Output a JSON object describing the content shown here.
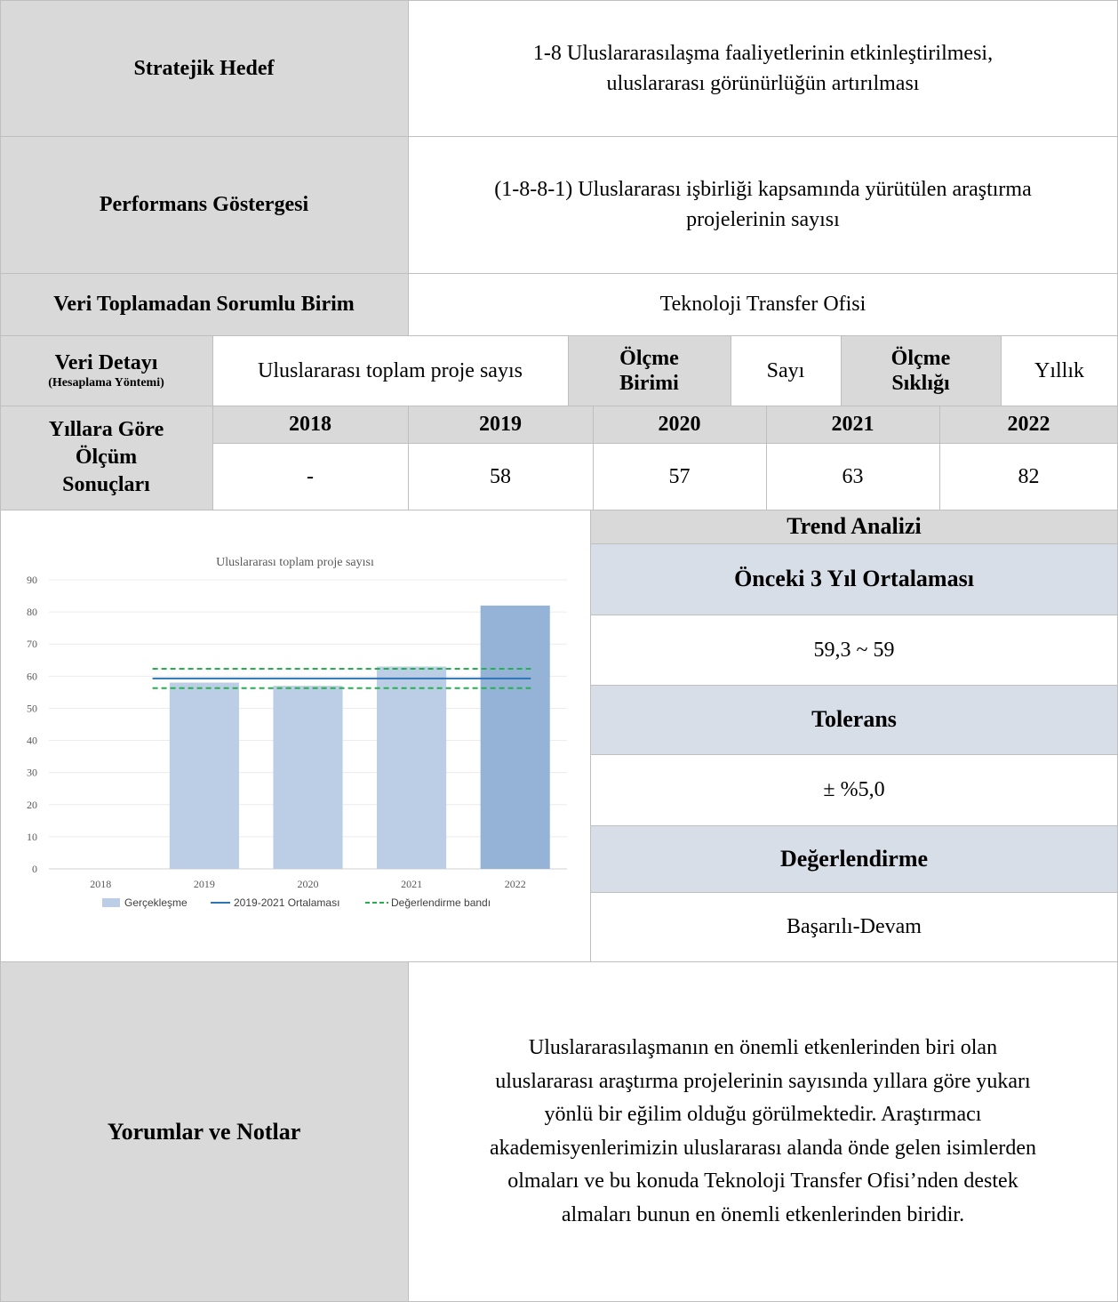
{
  "strategic_goal": {
    "label": "Stratejik Hedef",
    "value_line1": "1-8 Uluslararasılaşma faaliyetlerinin etkinleştirilmesi,",
    "value_line2": "uluslararası görünürlüğün artırılması"
  },
  "performance_indicator": {
    "label": "Performans Göstergesi",
    "value_line1": "(1-8-8-1) Uluslararası işbirliği kapsamında yürütülen araştırma",
    "value_line2": "projelerinin sayısı"
  },
  "responsible_unit": {
    "label": "Veri Toplamadan Sorumlu Birim",
    "value": "Teknoloji Transfer Ofisi"
  },
  "data_detail": {
    "label": "Veri Detayı",
    "sublabel": "(Hesaplama Yöntemi)",
    "value": "Uluslararası toplam proje sayıs",
    "unit_label_line1": "Ölçme",
    "unit_label_line2": "Birimi",
    "unit_value": "Sayı",
    "freq_label_line1": "Ölçme",
    "freq_label_line2": "Sıklığı",
    "freq_value": "Yıllık"
  },
  "yearly": {
    "label_line1": "Yıllara Göre",
    "label_line2": "Ölçüm",
    "label_line3": "Sonuçları",
    "years": [
      "2018",
      "2019",
      "2020",
      "2021",
      "2022"
    ],
    "values": [
      "-",
      "58",
      "57",
      "63",
      "82"
    ]
  },
  "trend": {
    "title": "Trend Analizi",
    "avg_label": "Önceki 3 Yıl Ortalaması",
    "avg_value": "59,3 ~ 59",
    "tolerance_label": "Tolerans",
    "tolerance_value": "± %5,0",
    "evaluation_label": "Değerlendirme",
    "evaluation_value": "Başarılı-Devam"
  },
  "comments": {
    "label": "Yorumlar ve Notlar",
    "lines": [
      "Uluslararasılaşmanın en önemli etkenlerinden biri olan",
      "uluslararası araştırma projelerinin sayısında yıllara göre yukarı",
      "yönlü bir eğilim olduğu görülmektedir. Araştırmacı",
      "akademisyenlerimizin uluslararası alanda önde gelen isimlerden",
      "olmaları ve bu konuda Teknoloji Transfer Ofisi’nden destek",
      "almaları bunun en önemli etkenlerinden biridir."
    ]
  },
  "chart_data": {
    "type": "bar",
    "title": "Uluslararası toplam proje sayısı",
    "categories": [
      "2018",
      "2019",
      "2020",
      "2021",
      "2022"
    ],
    "series": [
      {
        "name": "Gerçekleşme",
        "values": [
          0,
          58,
          57,
          63,
          82
        ],
        "color": "#bccde6",
        "highlight_color": "#95b3d7"
      }
    ],
    "average_line": {
      "name": "2019-2021 Ortalaması",
      "value": 59.3,
      "color": "#2e75b6"
    },
    "band": {
      "name": "Değerlendirme bandı",
      "lower": 56.3,
      "upper": 62.3,
      "color": "#22b14c"
    },
    "ylim": [
      0,
      90
    ],
    "yticks": [
      0,
      10,
      20,
      30,
      40,
      50,
      60,
      70,
      80,
      90
    ],
    "legend_position": "bottom",
    "grid": true
  }
}
